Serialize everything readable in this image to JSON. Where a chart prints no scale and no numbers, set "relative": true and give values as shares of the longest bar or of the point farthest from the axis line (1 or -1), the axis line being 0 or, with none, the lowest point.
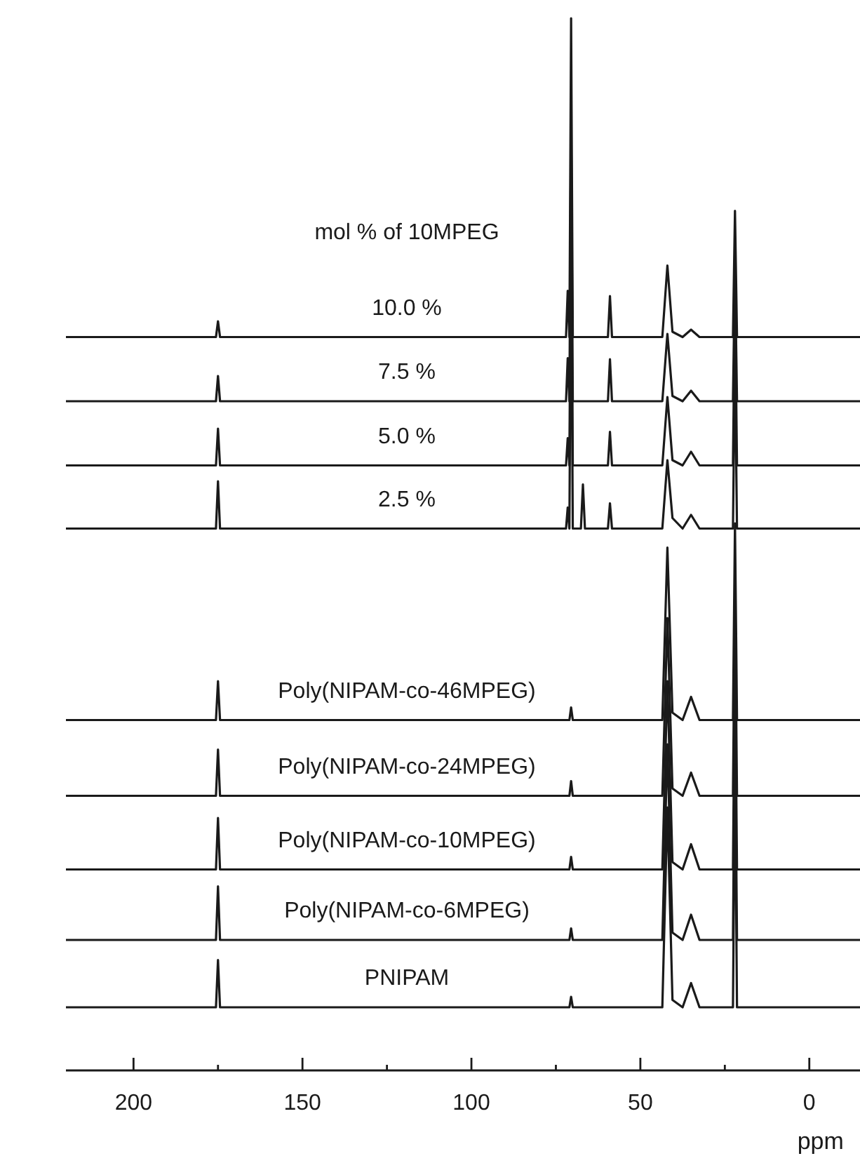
{
  "chart_data": {
    "type": "line",
    "relative": true,
    "xlabel": "ppm",
    "xlim": [
      220,
      -15
    ],
    "xticks": [
      {
        "value": 200,
        "label": "200"
      },
      {
        "value": 175,
        "label": null
      },
      {
        "value": 150,
        "label": "150"
      },
      {
        "value": 125,
        "label": null
      },
      {
        "value": 100,
        "label": "100"
      },
      {
        "value": 75,
        "label": null
      },
      {
        "value": 50,
        "label": "50"
      },
      {
        "value": 25,
        "label": null
      },
      {
        "value": 0,
        "label": "0"
      }
    ],
    "annotations": [
      "mol % of 10MPEG"
    ],
    "x": [
      220,
      175.6,
      175,
      174.4,
      72,
      71.5,
      71,
      70.5,
      70,
      67.6,
      67,
      66.4,
      59.6,
      59,
      58.4,
      43.5,
      42,
      40.5,
      37.5,
      35,
      32.5,
      22.6,
      22,
      21.4,
      -15
    ],
    "series": [
      {
        "name": "10.0 %",
        "color": "#1a1a1a",
        "values": [
          0.697,
          0.697,
          0.712,
          0.697,
          0.697,
          0.741,
          0.697,
          1.0,
          0.697,
          0.697,
          0.697,
          0.697,
          0.697,
          0.736,
          0.697,
          0.697,
          0.765,
          0.702,
          0.697,
          0.704,
          0.697,
          0.697,
          0.817,
          0.697,
          0.697
        ]
      },
      {
        "name": "7.5 %",
        "color": "#1a1a1a",
        "values": [
          0.636,
          0.636,
          0.66,
          0.636,
          0.636,
          0.677,
          0.636,
          0.9,
          0.636,
          0.636,
          0.636,
          0.636,
          0.636,
          0.676,
          0.636,
          0.636,
          0.7,
          0.641,
          0.636,
          0.646,
          0.636,
          0.636,
          0.765,
          0.636,
          0.636
        ]
      },
      {
        "name": "5.0 %",
        "color": "#1a1a1a",
        "values": [
          0.575,
          0.575,
          0.61,
          0.575,
          0.575,
          0.601,
          0.575,
          0.85,
          0.575,
          0.575,
          0.575,
          0.575,
          0.575,
          0.607,
          0.575,
          0.575,
          0.64,
          0.58,
          0.575,
          0.588,
          0.575,
          0.575,
          0.74,
          0.575,
          0.575
        ]
      },
      {
        "name": "2.5 %",
        "color": "#1a1a1a",
        "values": [
          0.515,
          0.515,
          0.56,
          0.515,
          0.515,
          0.535,
          0.515,
          0.8,
          0.515,
          0.515,
          0.557,
          0.515,
          0.515,
          0.539,
          0.515,
          0.515,
          0.58,
          0.525,
          0.515,
          0.528,
          0.515,
          0.515,
          0.68,
          0.515,
          0.515
        ]
      },
      {
        "name": "Poly(NIPAM-co-46MPEG)",
        "color": "#1a1a1a",
        "values": [
          0.333,
          0.333,
          0.37,
          0.333,
          0.333,
          0.333,
          0.333,
          0.345,
          0.333,
          0.333,
          0.333,
          0.333,
          0.333,
          0.333,
          0.333,
          0.333,
          0.497,
          0.34,
          0.333,
          0.355,
          0.333,
          0.333,
          0.52,
          0.333,
          0.333
        ]
      },
      {
        "name": "Poly(NIPAM-co-24MPEG)",
        "color": "#1a1a1a",
        "values": [
          0.261,
          0.261,
          0.305,
          0.261,
          0.261,
          0.261,
          0.261,
          0.275,
          0.261,
          0.261,
          0.261,
          0.261,
          0.261,
          0.261,
          0.261,
          0.261,
          0.43,
          0.268,
          0.261,
          0.283,
          0.261,
          0.261,
          0.46,
          0.261,
          0.261
        ]
      },
      {
        "name": "Poly(NIPAM-co-10MPEG)",
        "color": "#1a1a1a",
        "values": [
          0.191,
          0.191,
          0.24,
          0.191,
          0.191,
          0.191,
          0.191,
          0.203,
          0.191,
          0.191,
          0.191,
          0.191,
          0.191,
          0.191,
          0.191,
          0.191,
          0.37,
          0.198,
          0.191,
          0.215,
          0.191,
          0.191,
          0.4,
          0.191,
          0.191
        ]
      },
      {
        "name": "Poly(NIPAM-co-6MPEG)",
        "color": "#1a1a1a",
        "values": [
          0.124,
          0.124,
          0.175,
          0.124,
          0.124,
          0.124,
          0.124,
          0.135,
          0.124,
          0.124,
          0.124,
          0.124,
          0.124,
          0.124,
          0.124,
          0.124,
          0.31,
          0.131,
          0.124,
          0.148,
          0.124,
          0.124,
          0.34,
          0.124,
          0.124
        ]
      },
      {
        "name": "PNIPAM",
        "color": "#1a1a1a",
        "values": [
          0.06,
          0.06,
          0.105,
          0.06,
          0.06,
          0.06,
          0.06,
          0.07,
          0.06,
          0.06,
          0.06,
          0.06,
          0.06,
          0.06,
          0.06,
          0.06,
          0.25,
          0.067,
          0.06,
          0.083,
          0.06,
          0.06,
          0.29,
          0.06,
          0.06
        ]
      }
    ]
  }
}
